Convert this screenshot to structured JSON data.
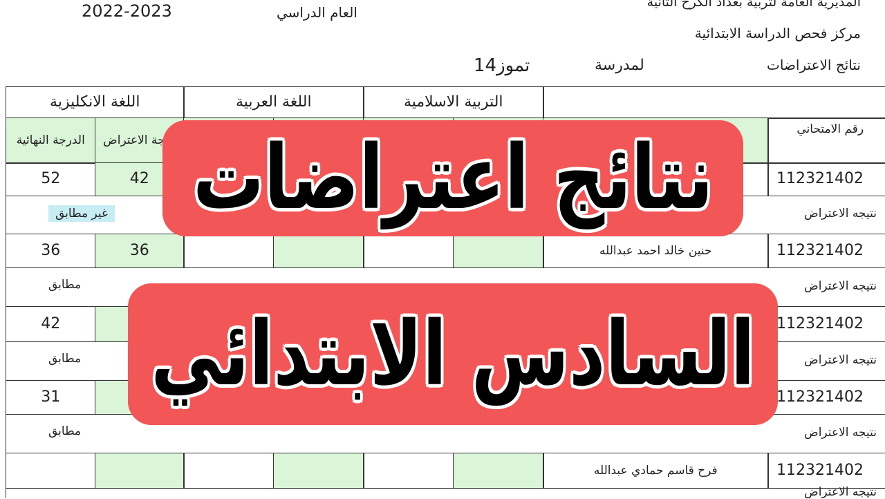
{
  "header": {
    "directorate": "المديرية العامة لتربية بغداد الكرخ الثانية",
    "center": "مركز فحص الدراسة الابتدائية",
    "results_label": "نتائج الاعتراضات",
    "school_label": "لمدرسة",
    "school_name": "تموز14",
    "year_label": "العام الدراسي",
    "year_value": "2022-2023"
  },
  "table": {
    "subjects": [
      "التربية الاسلامية",
      "اللغة العربية",
      "اللغة الانكليزية"
    ],
    "exam_number_header": "رقم الامتحاني",
    "objection_grade_header": "درجة الاعتراض",
    "final_grade_header": "الدرجة النهائية",
    "result_label": "نتيجه الاعتراض",
    "students": [
      {
        "exam_number": "112321402",
        "name": "",
        "english_objection": "42",
        "english_final": "52",
        "result": "غير مطابق",
        "highlight": true
      },
      {
        "exam_number": "112321402",
        "name": "حنين خالد احمد عبدالله",
        "english_objection": "36",
        "english_final": "36",
        "result": "مطابق",
        "highlight": false
      },
      {
        "exam_number": "112321402",
        "name": "",
        "english_objection": "",
        "english_final": "42",
        "result": "مطابق",
        "highlight": false
      },
      {
        "exam_number": "112321402",
        "name": "",
        "english_objection": "",
        "english_final": "31",
        "result": "مطابق",
        "highlight": false
      },
      {
        "exam_number": "112321402",
        "name": "فرح قاسم حمادي عبدالله",
        "english_objection": "",
        "english_final": "",
        "result": "",
        "highlight": false
      }
    ]
  },
  "overlay": {
    "line1": "نتائج اعتراضات",
    "line2": "السادس الابتدائي",
    "banner_color": "#f25656"
  }
}
